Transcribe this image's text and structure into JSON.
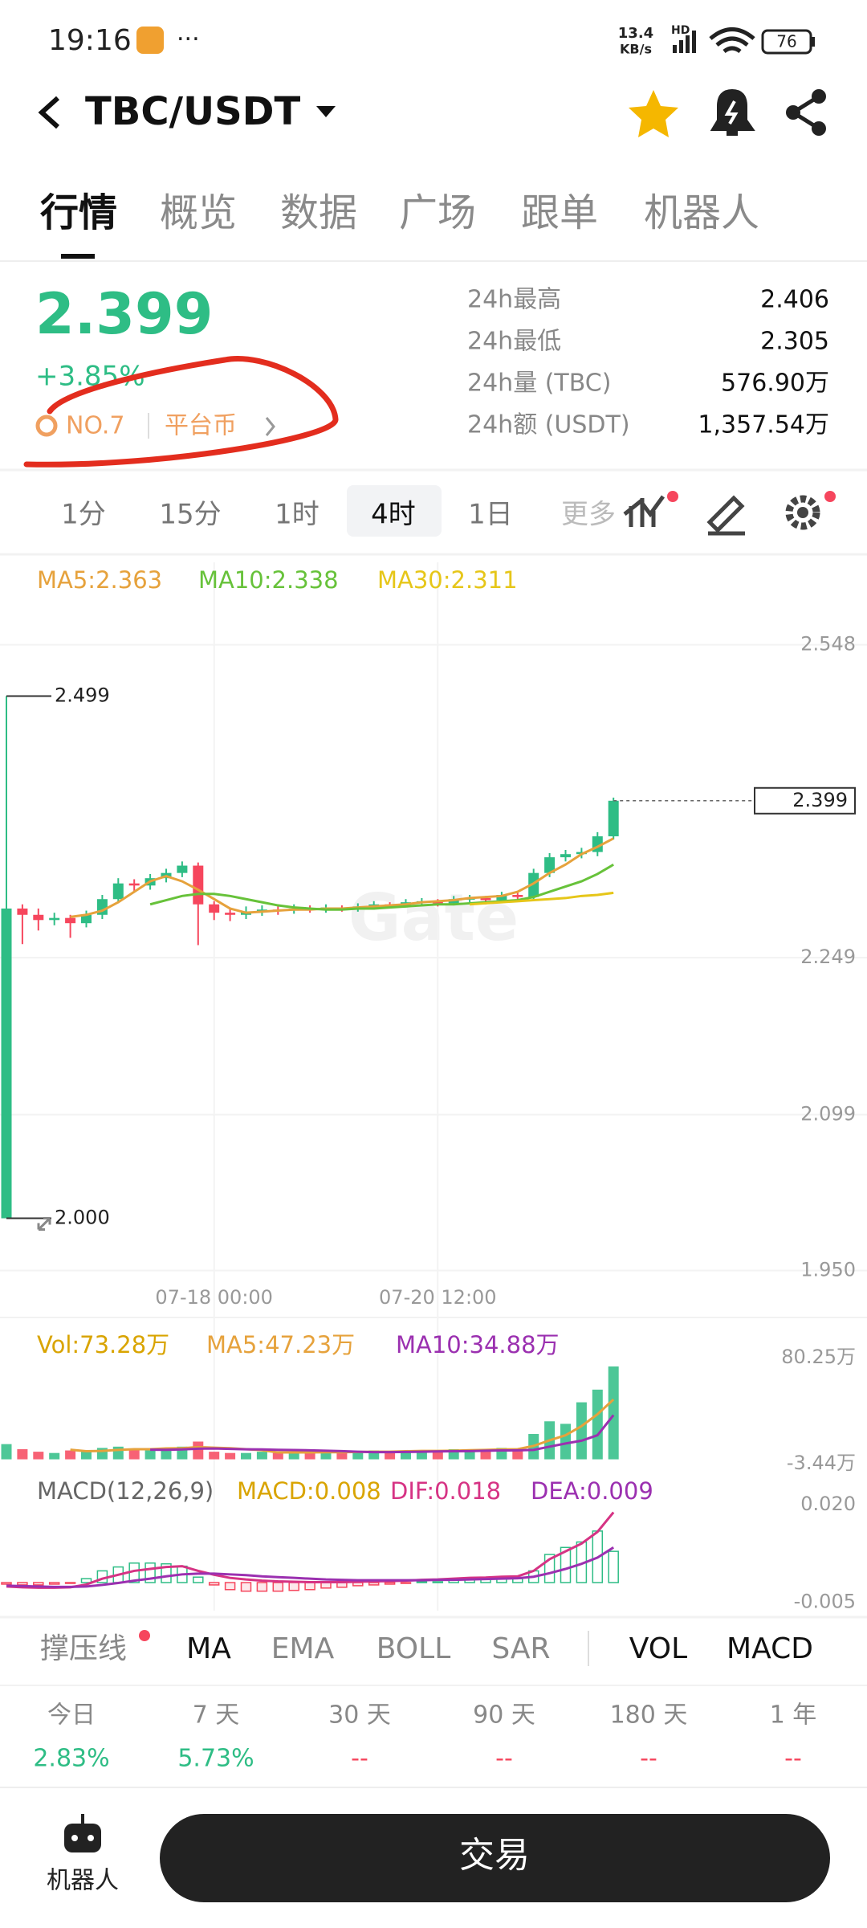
{
  "status_bar": {
    "time": "19:16",
    "speed": "13.4",
    "speed_unit": "KB/s",
    "network": "HD",
    "battery": "76"
  },
  "header": {
    "pair": "TBC/USDT"
  },
  "tabs": [
    "行情",
    "概览",
    "数据",
    "广场",
    "跟单",
    "机器人"
  ],
  "price": {
    "last": "2.399",
    "change": "+3.85%",
    "rank": "NO.7",
    "tag": "平台币"
  },
  "stats": [
    {
      "label": "24h最高",
      "value": "2.406"
    },
    {
      "label": "24h最低",
      "value": "2.305"
    },
    {
      "label": "24h量 (TBC)",
      "value": "576.90万"
    },
    {
      "label": "24h额 (USDT)",
      "value": "1,357.54万"
    }
  ],
  "intervals": [
    "1分",
    "15分",
    "1时",
    "4时",
    "1日",
    "更多"
  ],
  "chart_data": [
    {
      "type": "candlestick",
      "watermark": "Gate",
      "up_color": "#2ebd85",
      "down_color": "#f6465d",
      "ylim": [
        1.944,
        2.613
      ],
      "yticks": [
        2.548,
        2.249,
        2.099,
        {
          "value": 1.95,
          "label": "1.950"
        }
      ],
      "grid": true,
      "categories": [
        null,
        null,
        null,
        null,
        null,
        null,
        null,
        null,
        null,
        null,
        null,
        null,
        null,
        "07-18 00:00",
        null,
        null,
        null,
        null,
        null,
        null,
        null,
        null,
        null,
        null,
        null,
        null,
        null,
        "07-20 12:00",
        null,
        null,
        null,
        null,
        null,
        null,
        null,
        null,
        null,
        null,
        null
      ],
      "ohlc": [
        [
          2.0,
          2.499,
          2.0,
          2.296
        ],
        [
          2.296,
          2.3,
          2.262,
          2.29
        ],
        [
          2.29,
          2.296,
          2.275,
          2.285
        ],
        [
          2.285,
          2.292,
          2.28,
          2.287
        ],
        [
          2.287,
          2.29,
          2.268,
          2.282
        ],
        [
          2.282,
          2.294,
          2.278,
          2.29
        ],
        [
          2.29,
          2.309,
          2.286,
          2.305
        ],
        [
          2.305,
          2.325,
          2.301,
          2.32
        ],
        [
          2.32,
          2.324,
          2.312,
          2.318
        ],
        [
          2.318,
          2.329,
          2.314,
          2.325
        ],
        [
          2.325,
          2.334,
          2.321,
          2.33
        ],
        [
          2.33,
          2.341,
          2.326,
          2.337
        ],
        [
          2.337,
          2.34,
          2.261,
          2.3
        ],
        [
          2.3,
          2.303,
          2.285,
          2.292
        ],
        [
          2.292,
          2.297,
          2.284,
          2.29
        ],
        [
          2.29,
          2.298,
          2.286,
          2.293
        ],
        [
          2.293,
          2.299,
          2.289,
          2.295
        ],
        [
          2.295,
          2.298,
          2.29,
          2.294
        ],
        [
          2.294,
          2.3,
          2.291,
          2.296
        ],
        [
          2.296,
          2.299,
          2.292,
          2.295
        ],
        [
          2.295,
          2.3,
          2.292,
          2.297
        ],
        [
          2.297,
          2.299,
          2.293,
          2.296
        ],
        [
          2.296,
          2.301,
          2.293,
          2.298
        ],
        [
          2.298,
          2.303,
          2.295,
          2.3
        ],
        [
          2.3,
          2.302,
          2.296,
          2.299
        ],
        [
          2.299,
          2.305,
          2.297,
          2.302
        ],
        [
          2.302,
          2.306,
          2.299,
          2.303
        ],
        [
          2.303,
          2.305,
          2.298,
          2.301
        ],
        [
          2.301,
          2.308,
          2.299,
          2.305
        ],
        [
          2.305,
          2.309,
          2.302,
          2.306
        ],
        [
          2.306,
          2.308,
          2.3,
          2.304
        ],
        [
          2.304,
          2.312,
          2.302,
          2.309
        ],
        [
          2.309,
          2.311,
          2.303,
          2.307
        ],
        [
          2.307,
          2.334,
          2.305,
          2.33
        ],
        [
          2.33,
          2.349,
          2.326,
          2.345
        ],
        [
          2.345,
          2.352,
          2.341,
          2.348
        ],
        [
          2.348,
          2.354,
          2.344,
          2.35
        ],
        [
          2.35,
          2.369,
          2.346,
          2.365
        ],
        [
          2.365,
          2.402,
          2.362,
          2.399
        ]
      ],
      "series": [
        {
          "name": "MA5:2.363",
          "color": "#e6a23c",
          "values": [
            null,
            null,
            null,
            null,
            2.288,
            2.29,
            2.294,
            2.302,
            2.312,
            2.322,
            2.327,
            2.322,
            2.314,
            2.305,
            2.296,
            2.292,
            2.293,
            2.294,
            2.295,
            2.295,
            2.296,
            2.296,
            2.297,
            2.298,
            2.299,
            2.3,
            2.302,
            2.303,
            2.304,
            2.306,
            2.307,
            2.308,
            2.312,
            2.32,
            2.33,
            2.338,
            2.348,
            2.355,
            2.363
          ]
        },
        {
          "name": "MA10:2.338",
          "color": "#67c23a",
          "values": [
            null,
            null,
            null,
            null,
            null,
            null,
            null,
            null,
            null,
            2.3,
            2.304,
            2.308,
            2.31,
            2.31,
            2.308,
            2.305,
            2.302,
            2.299,
            2.297,
            2.296,
            2.295,
            2.295,
            2.296,
            2.296,
            2.297,
            2.298,
            2.299,
            2.3,
            2.3,
            2.301,
            2.302,
            2.303,
            2.304,
            2.307,
            2.312,
            2.317,
            2.322,
            2.329,
            2.338
          ]
        },
        {
          "name": "MA30:2.311",
          "color": "#e6c619",
          "values": [
            null,
            null,
            null,
            null,
            null,
            null,
            null,
            null,
            null,
            null,
            null,
            null,
            null,
            null,
            null,
            null,
            null,
            null,
            null,
            null,
            null,
            null,
            null,
            null,
            null,
            null,
            null,
            null,
            null,
            2.3,
            2.301,
            2.302,
            2.303,
            2.304,
            2.305,
            2.306,
            2.308,
            2.309,
            2.311
          ]
        }
      ],
      "high_mark": 2.499,
      "low_mark": {
        "value": 2,
        "label": "2.000"
      },
      "last_price": 2.399
    },
    {
      "type": "bar",
      "ylim": [
        -3.44,
        80.25
      ],
      "yticks": [
        {
          "value": 80.25,
          "label": "80.25万"
        },
        {
          "value": -3.44,
          "label": "-3.44万"
        }
      ],
      "series": [
        {
          "name": "Vol:73.28万",
          "color": "#d9a400",
          "values": [
            12,
            8,
            6,
            5,
            7,
            6,
            9,
            10,
            8,
            7,
            9,
            10,
            14,
            6,
            5,
            5,
            6,
            5,
            6,
            5,
            6,
            5,
            6,
            7,
            6,
            7,
            6,
            7,
            8,
            7,
            8,
            9,
            8,
            20,
            30,
            28,
            45,
            55,
            73.28
          ]
        },
        {
          "name": "MA5:47.23万",
          "color": "#e6a23c",
          "values": [
            null,
            null,
            null,
            null,
            7.6,
            6.4,
            6.6,
            7.4,
            8,
            8,
            8.6,
            8.8,
            9.6,
            9.2,
            8.8,
            8,
            7.2,
            5.4,
            5.4,
            5.4,
            5.6,
            5.6,
            5.8,
            6,
            6,
            6.4,
            6.6,
            6.6,
            6.8,
            7.2,
            7.4,
            7.8,
            8,
            10.6,
            15,
            19,
            26.2,
            35.6,
            47.23
          ]
        },
        {
          "name": "MA10:34.88万",
          "color": "#9b30b0",
          "values": [
            null,
            null,
            null,
            null,
            null,
            null,
            null,
            null,
            null,
            7.6,
            7.5,
            7.8,
            8.4,
            8.5,
            8.2,
            7.9,
            7.8,
            7.5,
            7.3,
            7.1,
            6.8,
            6.5,
            6,
            5.7,
            5.7,
            5.8,
            6,
            6.2,
            6.4,
            6.5,
            6.8,
            7,
            7.1,
            7.4,
            10,
            12.5,
            14.7,
            19,
            34.88
          ]
        }
      ]
    },
    {
      "type": "macd",
      "title": "MACD(12,26,9)",
      "up_color": "#2ebd85",
      "down_color": "#f6465d",
      "ylim": [
        -0.0072,
        0.0247
      ],
      "yticks": [
        {
          "value": 0.02,
          "label": "0.020"
        },
        -0.005
      ],
      "series": [
        {
          "name": "MACD:0.008",
          "color": "#d9a400",
          "values": [
            -0.0004,
            -0.0006,
            -0.0006,
            -0.0004,
            -0.0002,
            0.001,
            0.003,
            0.004,
            0.005,
            0.005,
            0.0048,
            0.0042,
            0.0014,
            -0.0006,
            -0.0018,
            -0.0022,
            -0.0022,
            -0.0022,
            -0.002,
            -0.0018,
            -0.0014,
            -0.0012,
            -0.0008,
            -0.0006,
            -0.0004,
            -0.0002,
            0.0002,
            0.0002,
            0.0006,
            0.0008,
            0.0008,
            0.001,
            0.001,
            0.003,
            0.0072,
            0.009,
            0.0104,
            0.0132,
            0.008
          ]
        },
        {
          "name": "DIF:0.018",
          "color": "#d63384",
          "values": [
            -0.001,
            -0.0012,
            -0.0013,
            -0.0013,
            -0.0012,
            -0.0005,
            0.001,
            0.002,
            0.003,
            0.0035,
            0.004,
            0.0042,
            0.003,
            0.002,
            0.0012,
            0.0008,
            0.0005,
            0.0003,
            0.0002,
            0.0001,
            0.0001,
            0.0001,
            0.0002,
            0.0003,
            0.0004,
            0.0005,
            0.0007,
            0.0008,
            0.001,
            0.0012,
            0.0013,
            0.0015,
            0.0016,
            0.003,
            0.006,
            0.008,
            0.01,
            0.013,
            0.018
          ]
        },
        {
          "name": "DEA:0.009",
          "color": "#9b30b0",
          "values": [
            -0.0008,
            -0.0009,
            -0.001,
            -0.0011,
            -0.0011,
            -0.001,
            -0.0006,
            -0.0001,
            0.0005,
            0.001,
            0.0016,
            0.0021,
            0.0023,
            0.0023,
            0.0021,
            0.0019,
            0.0016,
            0.0014,
            0.0012,
            0.001,
            0.0008,
            0.0007,
            0.0006,
            0.0006,
            0.0006,
            0.0006,
            0.0006,
            0.0007,
            0.0007,
            0.0008,
            0.0009,
            0.001,
            0.0011,
            0.0015,
            0.0024,
            0.0035,
            0.0048,
            0.0064,
            0.009
          ]
        }
      ]
    }
  ],
  "indicators": [
    "撑压线",
    "MA",
    "EMA",
    "BOLL",
    "SAR",
    "VOL",
    "MACD"
  ],
  "returns": [
    {
      "label": "今日",
      "value": "2.83%",
      "color": "#2ebd85"
    },
    {
      "label": "7 天",
      "value": "5.73%",
      "color": "#2ebd85"
    },
    {
      "label": "30 天",
      "value": "--",
      "color": "#f6465d"
    },
    {
      "label": "90 天",
      "value": "--",
      "color": "#f6465d"
    },
    {
      "label": "180 天",
      "value": "--",
      "color": "#f6465d"
    },
    {
      "label": "1 年",
      "value": "--",
      "color": "#f6465d"
    }
  ],
  "bottom": {
    "robot": "机器人",
    "trade": "交易"
  }
}
